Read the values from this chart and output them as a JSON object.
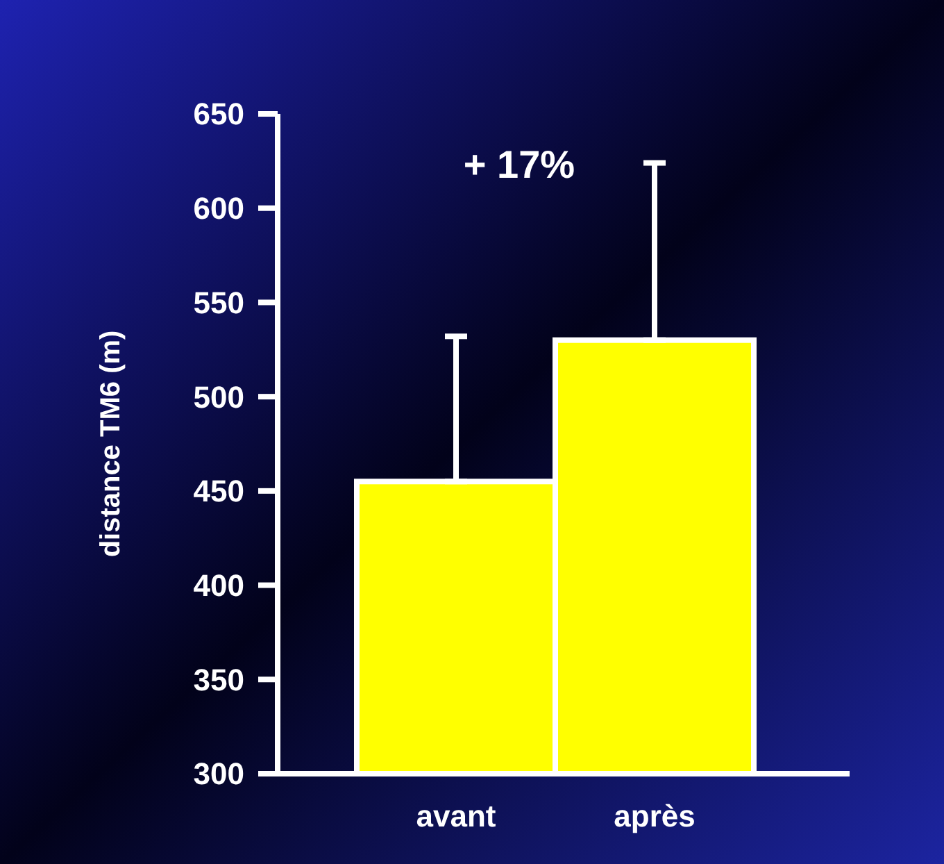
{
  "chart_data": {
    "type": "bar",
    "ylabel": "distance TM6 (m)",
    "categories": [
      "avant",
      "après"
    ],
    "values": [
      455,
      530
    ],
    "errors": [
      [
        455,
        532
      ],
      [
        530,
        624
      ]
    ],
    "color": "#ffff00",
    "ylim": [
      300,
      650
    ],
    "yticks": [
      300,
      350,
      400,
      450,
      500,
      550,
      600,
      650
    ],
    "annotations": [
      "+ 17%"
    ]
  }
}
